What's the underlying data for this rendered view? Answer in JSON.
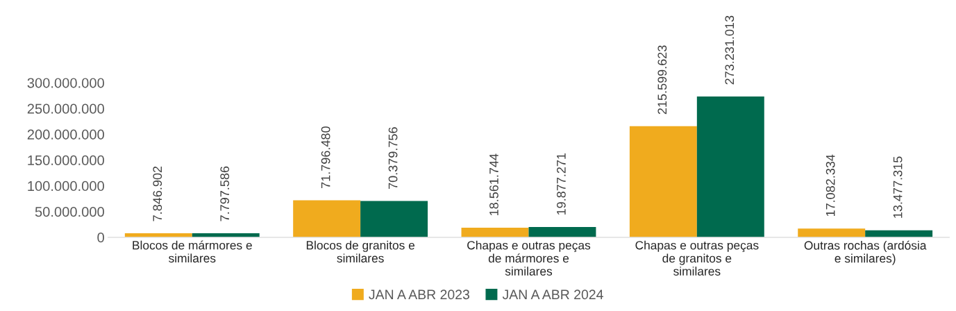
{
  "chart_data": {
    "type": "bar",
    "categories": [
      "Blocos de mármores e similares",
      "Blocos de granitos e similares",
      "Chapas e outras peças de mármores e similares",
      "Chapas e outras peças de granitos e similares",
      "Outras rochas (ardósia e similares)"
    ],
    "series": [
      {
        "name": "JAN A ABR 2023",
        "color": "#f0ab1e",
        "values": [
          7846902,
          71796480,
          18561744,
          215599623,
          17082334
        ],
        "value_labels": [
          "7.846.902",
          "71.796.480",
          "18.561.744",
          "215.599.623",
          "17.082.334"
        ]
      },
      {
        "name": "JAN A ABR 2024",
        "color": "#006a4e",
        "values": [
          7797586,
          70379756,
          19877271,
          273231013,
          13477315
        ],
        "value_labels": [
          "7.797.586",
          "70.379.756",
          "19.877.271",
          "273.231.013",
          "13.477.315"
        ]
      }
    ],
    "ylim": [
      0,
      300000000
    ],
    "yticks": [
      {
        "value": 0,
        "label": "0"
      },
      {
        "value": 50000000,
        "label": "50.000.000"
      },
      {
        "value": 100000000,
        "label": "100.000.000"
      },
      {
        "value": 150000000,
        "label": "150.000.000"
      },
      {
        "value": 200000000,
        "label": "200.000.000"
      },
      {
        "value": 250000000,
        "label": "250.000.000"
      },
      {
        "value": 300000000,
        "label": "300.000.000"
      }
    ],
    "grid": false,
    "legend": "bottom"
  }
}
